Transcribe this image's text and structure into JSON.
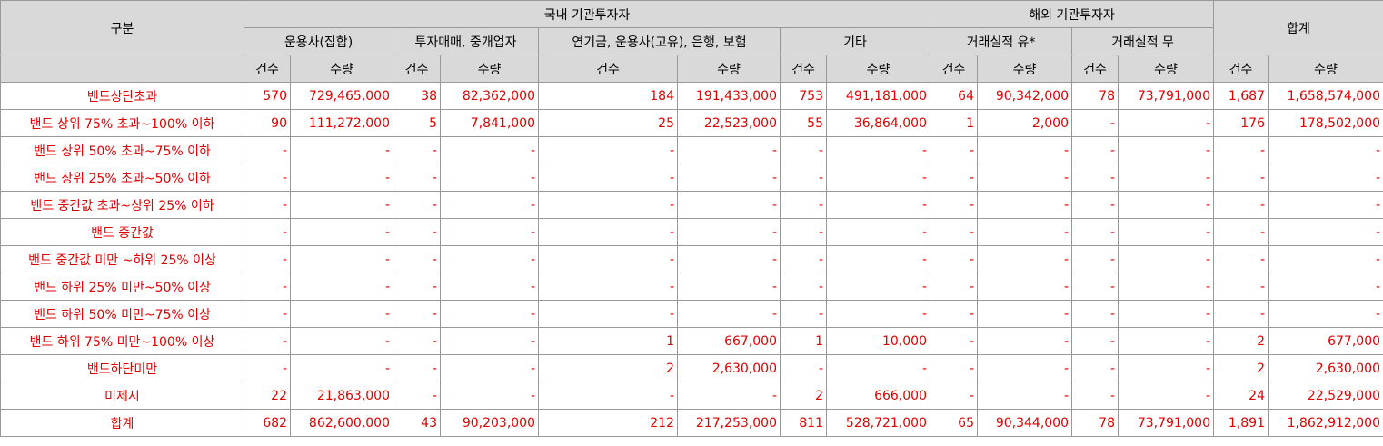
{
  "header": {
    "category": "구분",
    "domestic": "국내 기관투자자",
    "foreign": "해외 기관투자자",
    "total": "합계",
    "groups": [
      "운용사(집합)",
      "투자매매, 중개업자",
      "연기금, 운용사(고유), 은행, 보험",
      "기타",
      "거래실적 유*",
      "거래실적 무"
    ],
    "count": "건수",
    "qty": "수량"
  },
  "rows": [
    {
      "label": "밴드상단초과",
      "values": [
        "570",
        "729,465,000",
        "38",
        "82,362,000",
        "184",
        "191,433,000",
        "753",
        "491,181,000",
        "64",
        "90,342,000",
        "78",
        "73,791,000",
        "1,687",
        "1,658,574,000"
      ]
    },
    {
      "label": "밴드 상위 75% 초과~100% 이하",
      "values": [
        "90",
        "111,272,000",
        "5",
        "7,841,000",
        "25",
        "22,523,000",
        "55",
        "36,864,000",
        "1",
        "2,000",
        "-",
        "-",
        "176",
        "178,502,000"
      ]
    },
    {
      "label": "밴드 상위 50% 초과~75% 이하",
      "values": [
        "-",
        "-",
        "-",
        "-",
        "-",
        "-",
        "-",
        "-",
        "-",
        "-",
        "-",
        "-",
        "-",
        "-"
      ]
    },
    {
      "label": "밴드 상위 25% 초과~50% 이하",
      "values": [
        "-",
        "-",
        "-",
        "-",
        "-",
        "-",
        "-",
        "-",
        "-",
        "-",
        "-",
        "-",
        "-",
        "-"
      ]
    },
    {
      "label": "밴드 중간값 초과~상위 25% 이하",
      "values": [
        "-",
        "-",
        "-",
        "-",
        "-",
        "-",
        "-",
        "-",
        "-",
        "-",
        "-",
        "-",
        "-",
        "-"
      ]
    },
    {
      "label": "밴드 중간값",
      "values": [
        "-",
        "-",
        "-",
        "-",
        "-",
        "-",
        "-",
        "-",
        "-",
        "-",
        "-",
        "-",
        "-",
        "-"
      ]
    },
    {
      "label": "밴드 중간값 미만 ~하위 25% 이상",
      "values": [
        "-",
        "-",
        "-",
        "-",
        "-",
        "-",
        "-",
        "-",
        "-",
        "-",
        "-",
        "-",
        "-",
        "-"
      ]
    },
    {
      "label": "밴드 하위 25% 미만~50% 이상",
      "values": [
        "-",
        "-",
        "-",
        "-",
        "-",
        "-",
        "-",
        "-",
        "-",
        "-",
        "-",
        "-",
        "-",
        "-"
      ]
    },
    {
      "label": "밴드 하위 50% 미만~75% 이상",
      "values": [
        "-",
        "-",
        "-",
        "-",
        "-",
        "-",
        "-",
        "-",
        "-",
        "-",
        "-",
        "-",
        "-",
        "-"
      ]
    },
    {
      "label": "밴드 하위 75% 미만~100% 이상",
      "values": [
        "-",
        "-",
        "-",
        "-",
        "1",
        "667,000",
        "1",
        "10,000",
        "-",
        "-",
        "-",
        "-",
        "2",
        "677,000"
      ]
    },
    {
      "label": "밴드하단미만",
      "values": [
        "-",
        "-",
        "-",
        "-",
        "2",
        "2,630,000",
        "-",
        "-",
        "-",
        "-",
        "-",
        "-",
        "2",
        "2,630,000"
      ]
    },
    {
      "label": "미제시",
      "values": [
        "22",
        "21,863,000",
        "-",
        "-",
        "-",
        "-",
        "2",
        "666,000",
        "-",
        "-",
        "-",
        "-",
        "24",
        "22,529,000"
      ]
    }
  ],
  "total_row": {
    "label": "합계",
    "values": [
      "682",
      "862,600,000",
      "43",
      "90,203,000",
      "212",
      "217,253,000",
      "811",
      "528,721,000",
      "65",
      "90,344,000",
      "78",
      "73,791,000",
      "1,891",
      "1,862,912,000"
    ]
  },
  "colors": {
    "header_bg": "#d9d9d9",
    "value_text": "#e00000",
    "border": "#999999"
  }
}
